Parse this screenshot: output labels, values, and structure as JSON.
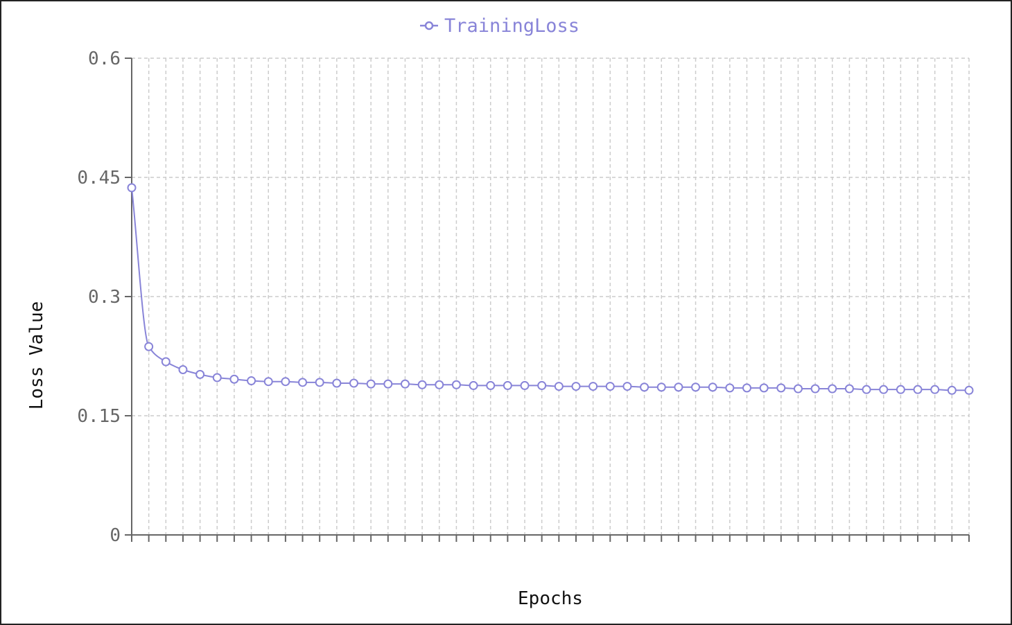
{
  "chart_data": {
    "type": "line",
    "title": "",
    "xlabel": "Epochs",
    "ylabel": "Loss Value",
    "ylim": [
      0,
      0.6
    ],
    "yticks": [
      "0",
      "0.15",
      "0.3",
      "0.45",
      "0.6"
    ],
    "grid": true,
    "legend_position": "top-center",
    "series": [
      {
        "name": "TrainingLoss",
        "color": "#8884d8",
        "marker": "circle-hollow",
        "x": [
          1,
          2,
          3,
          4,
          5,
          6,
          7,
          8,
          9,
          10,
          11,
          12,
          13,
          14,
          15,
          16,
          17,
          18,
          19,
          20,
          21,
          22,
          23,
          24,
          25,
          26,
          27,
          28,
          29,
          30,
          31,
          32,
          33,
          34,
          35,
          36,
          37,
          38,
          39,
          40,
          41,
          42,
          43,
          44,
          45,
          46,
          47,
          48,
          49,
          50
        ],
        "values": [
          0.437,
          0.237,
          0.218,
          0.208,
          0.202,
          0.198,
          0.196,
          0.194,
          0.193,
          0.193,
          0.192,
          0.192,
          0.191,
          0.191,
          0.19,
          0.19,
          0.19,
          0.189,
          0.189,
          0.189,
          0.188,
          0.188,
          0.188,
          0.188,
          0.188,
          0.187,
          0.187,
          0.187,
          0.187,
          0.187,
          0.186,
          0.186,
          0.186,
          0.186,
          0.186,
          0.185,
          0.185,
          0.185,
          0.185,
          0.184,
          0.184,
          0.184,
          0.184,
          0.183,
          0.183,
          0.183,
          0.183,
          0.183,
          0.182,
          0.182
        ]
      }
    ]
  }
}
